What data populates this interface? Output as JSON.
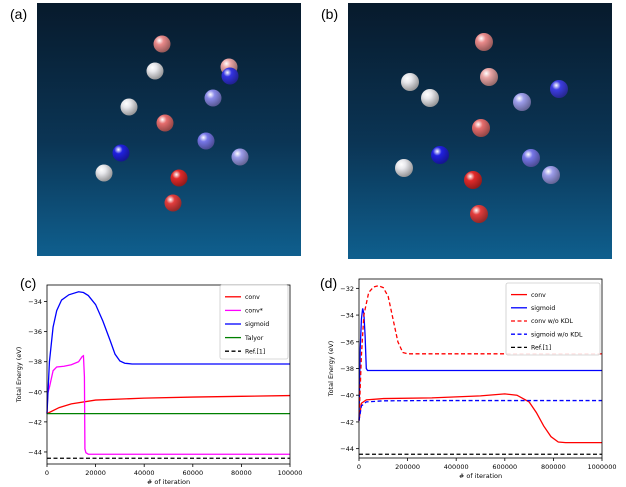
{
  "panels": {
    "a": {
      "label": "(a)"
    },
    "b": {
      "label": "(b)"
    },
    "c": {
      "label": "(c)"
    },
    "d": {
      "label": "(d)"
    }
  },
  "scenes": {
    "a": {
      "spheres": [
        {
          "tone": "red",
          "strength": 0.45
        },
        {
          "tone": "neutral",
          "strength": 0.0
        },
        {
          "tone": "red",
          "strength": 0.3
        },
        {
          "tone": "blue",
          "strength": 0.9
        },
        {
          "tone": "neutral",
          "strength": 0.0
        },
        {
          "tone": "blue",
          "strength": 0.45
        },
        {
          "tone": "red",
          "strength": 0.6
        },
        {
          "tone": "blue",
          "strength": 0.55
        },
        {
          "tone": "blue",
          "strength": 1.0
        },
        {
          "tone": "blue",
          "strength": 0.35
        },
        {
          "tone": "neutral",
          "strength": 0.0
        },
        {
          "tone": "red",
          "strength": 0.95
        },
        {
          "tone": "red",
          "strength": 0.85
        }
      ]
    },
    "b": {
      "spheres": [
        {
          "tone": "red",
          "strength": 0.45
        },
        {
          "tone": "neutral",
          "strength": 0.0
        },
        {
          "tone": "red",
          "strength": 0.3
        },
        {
          "tone": "neutral",
          "strength": 0.0
        },
        {
          "tone": "blue",
          "strength": 0.35
        },
        {
          "tone": "blue",
          "strength": 0.85
        },
        {
          "tone": "red",
          "strength": 0.6
        },
        {
          "tone": "neutral",
          "strength": 0.0
        },
        {
          "tone": "blue",
          "strength": 1.0
        },
        {
          "tone": "blue",
          "strength": 0.55
        },
        {
          "tone": "blue",
          "strength": 0.35
        },
        {
          "tone": "red",
          "strength": 0.95
        },
        {
          "tone": "red",
          "strength": 0.85
        }
      ]
    }
  },
  "colors": {
    "conv": "#ff0000",
    "conv_star": "#ff00ff",
    "sigmoid": "#0000ff",
    "taylor": "#008000",
    "ref": "#000000",
    "scene_red": "#e02020",
    "scene_blue": "#2020e0"
  },
  "chart_data": [
    {
      "id": "c",
      "type": "line",
      "xlabel": "# of iteration",
      "ylabel": "Total Energy (eV)",
      "xlim": [
        0,
        100000
      ],
      "ylim": [
        -44.8,
        -32.9
      ],
      "xticks": [
        0,
        20000,
        40000,
        60000,
        80000,
        100000
      ],
      "xtick_labels": [
        "0",
        "20000",
        "40000",
        "60000",
        "80000",
        "100000"
      ],
      "yticks": [
        -44,
        -42,
        -40,
        -38,
        -36,
        -34
      ],
      "ytick_labels": [
        "−44",
        "−42",
        "−40",
        "−38",
        "−36",
        "−34"
      ],
      "legend_position": "top-right",
      "legend_order": [
        "conv",
        "conv*",
        "sigmoid",
        "Talyor",
        "Ref.[1]"
      ],
      "series": [
        {
          "name": "conv",
          "color": "#ff0000",
          "style": "solid",
          "x": [
            0,
            5000,
            10000,
            20000,
            40000,
            60000,
            80000,
            100000
          ],
          "y": [
            -41.45,
            -41.05,
            -40.8,
            -40.55,
            -40.42,
            -40.35,
            -40.3,
            -40.25
          ]
        },
        {
          "name": "conv*",
          "color": "#ff00ff",
          "style": "solid",
          "x": [
            0,
            300,
            1000,
            2500,
            4000,
            7000,
            10000,
            13000,
            14500,
            15000,
            15400,
            15600,
            16000,
            17000,
            100000
          ],
          "y": [
            -41.45,
            -40.1,
            -39.7,
            -38.6,
            -38.35,
            -38.3,
            -38.2,
            -38.0,
            -37.65,
            -37.6,
            -39.0,
            -43.8,
            -44.05,
            -44.15,
            -44.15
          ]
        },
        {
          "name": "sigmoid",
          "color": "#0000ff",
          "style": "solid",
          "x": [
            0,
            1000,
            2500,
            4000,
            6000,
            9000,
            13000,
            15000,
            17000,
            20000,
            23000,
            26000,
            28000,
            30000,
            32000,
            35000,
            100000
          ],
          "y": [
            -41.45,
            -38.0,
            -35.7,
            -34.6,
            -33.9,
            -33.55,
            -33.35,
            -33.4,
            -33.6,
            -34.2,
            -35.3,
            -36.6,
            -37.5,
            -37.95,
            -38.1,
            -38.15,
            -38.15
          ]
        },
        {
          "name": "Talyor",
          "color": "#008000",
          "style": "solid",
          "x": [
            0,
            100000
          ],
          "y": [
            -41.45,
            -41.45
          ]
        },
        {
          "name": "Ref.[1]",
          "color": "#000000",
          "style": "dashed",
          "x": [
            0,
            100000
          ],
          "y": [
            -44.42,
            -44.42
          ]
        }
      ]
    },
    {
      "id": "d",
      "type": "line",
      "xlabel": "# of iteration",
      "ylabel": "Total Energy (eV)",
      "xlim": [
        0,
        1000000
      ],
      "ylim": [
        -44.7,
        -31.3
      ],
      "xticks": [
        0,
        200000,
        400000,
        600000,
        800000,
        1000000
      ],
      "xtick_labels": [
        "0",
        "200000",
        "400000",
        "600000",
        "800000",
        "1000000"
      ],
      "yticks": [
        -44,
        -42,
        -40,
        -38,
        -36,
        -34,
        -32
      ],
      "ytick_labels": [
        "−44",
        "−42",
        "−40",
        "−38",
        "−36",
        "−34",
        "−32"
      ],
      "legend_position": "top-right",
      "legend_order": [
        "conv",
        "sigmoid",
        "conv w/o KDL",
        "sigmoid w/o KDL",
        "Ref.[1]"
      ],
      "series": [
        {
          "name": "conv",
          "color": "#ff0000",
          "style": "solid",
          "x": [
            0,
            10000,
            30000,
            100000,
            300000,
            500000,
            600000,
            650000,
            700000,
            730000,
            760000,
            790000,
            820000,
            850000,
            900000,
            1000000
          ],
          "y": [
            -41.9,
            -40.6,
            -40.35,
            -40.25,
            -40.2,
            -40.05,
            -39.9,
            -40.0,
            -40.5,
            -41.3,
            -42.3,
            -43.1,
            -43.5,
            -43.55,
            -43.55,
            -43.55
          ]
        },
        {
          "name": "sigmoid",
          "color": "#0000ff",
          "style": "solid",
          "x": [
            0,
            5000,
            10000,
            15000,
            20000,
            25000,
            30000,
            35000,
            1000000
          ],
          "y": [
            -41.9,
            -36.5,
            -34.3,
            -33.5,
            -33.9,
            -35.5,
            -38.0,
            -38.15,
            -38.15
          ]
        },
        {
          "name": "conv w/o KDL",
          "color": "#ff0000",
          "style": "dashed",
          "x": [
            0,
            10000,
            20000,
            40000,
            60000,
            80000,
            100000,
            120000,
            140000,
            160000,
            180000,
            200000,
            1000000
          ],
          "y": [
            -41.9,
            -37.0,
            -34.0,
            -32.3,
            -31.9,
            -31.8,
            -31.95,
            -32.6,
            -34.3,
            -36.0,
            -36.8,
            -36.9,
            -36.9
          ]
        },
        {
          "name": "sigmoid w/o KDL",
          "color": "#0000ff",
          "style": "dashed",
          "x": [
            0,
            10000,
            30000,
            100000,
            300000,
            1000000
          ],
          "y": [
            -41.9,
            -40.8,
            -40.5,
            -40.42,
            -40.4,
            -40.4
          ]
        },
        {
          "name": "Ref.[1]",
          "color": "#000000",
          "style": "dashed",
          "x": [
            0,
            1000000
          ],
          "y": [
            -44.42,
            -44.42
          ]
        }
      ]
    }
  ]
}
